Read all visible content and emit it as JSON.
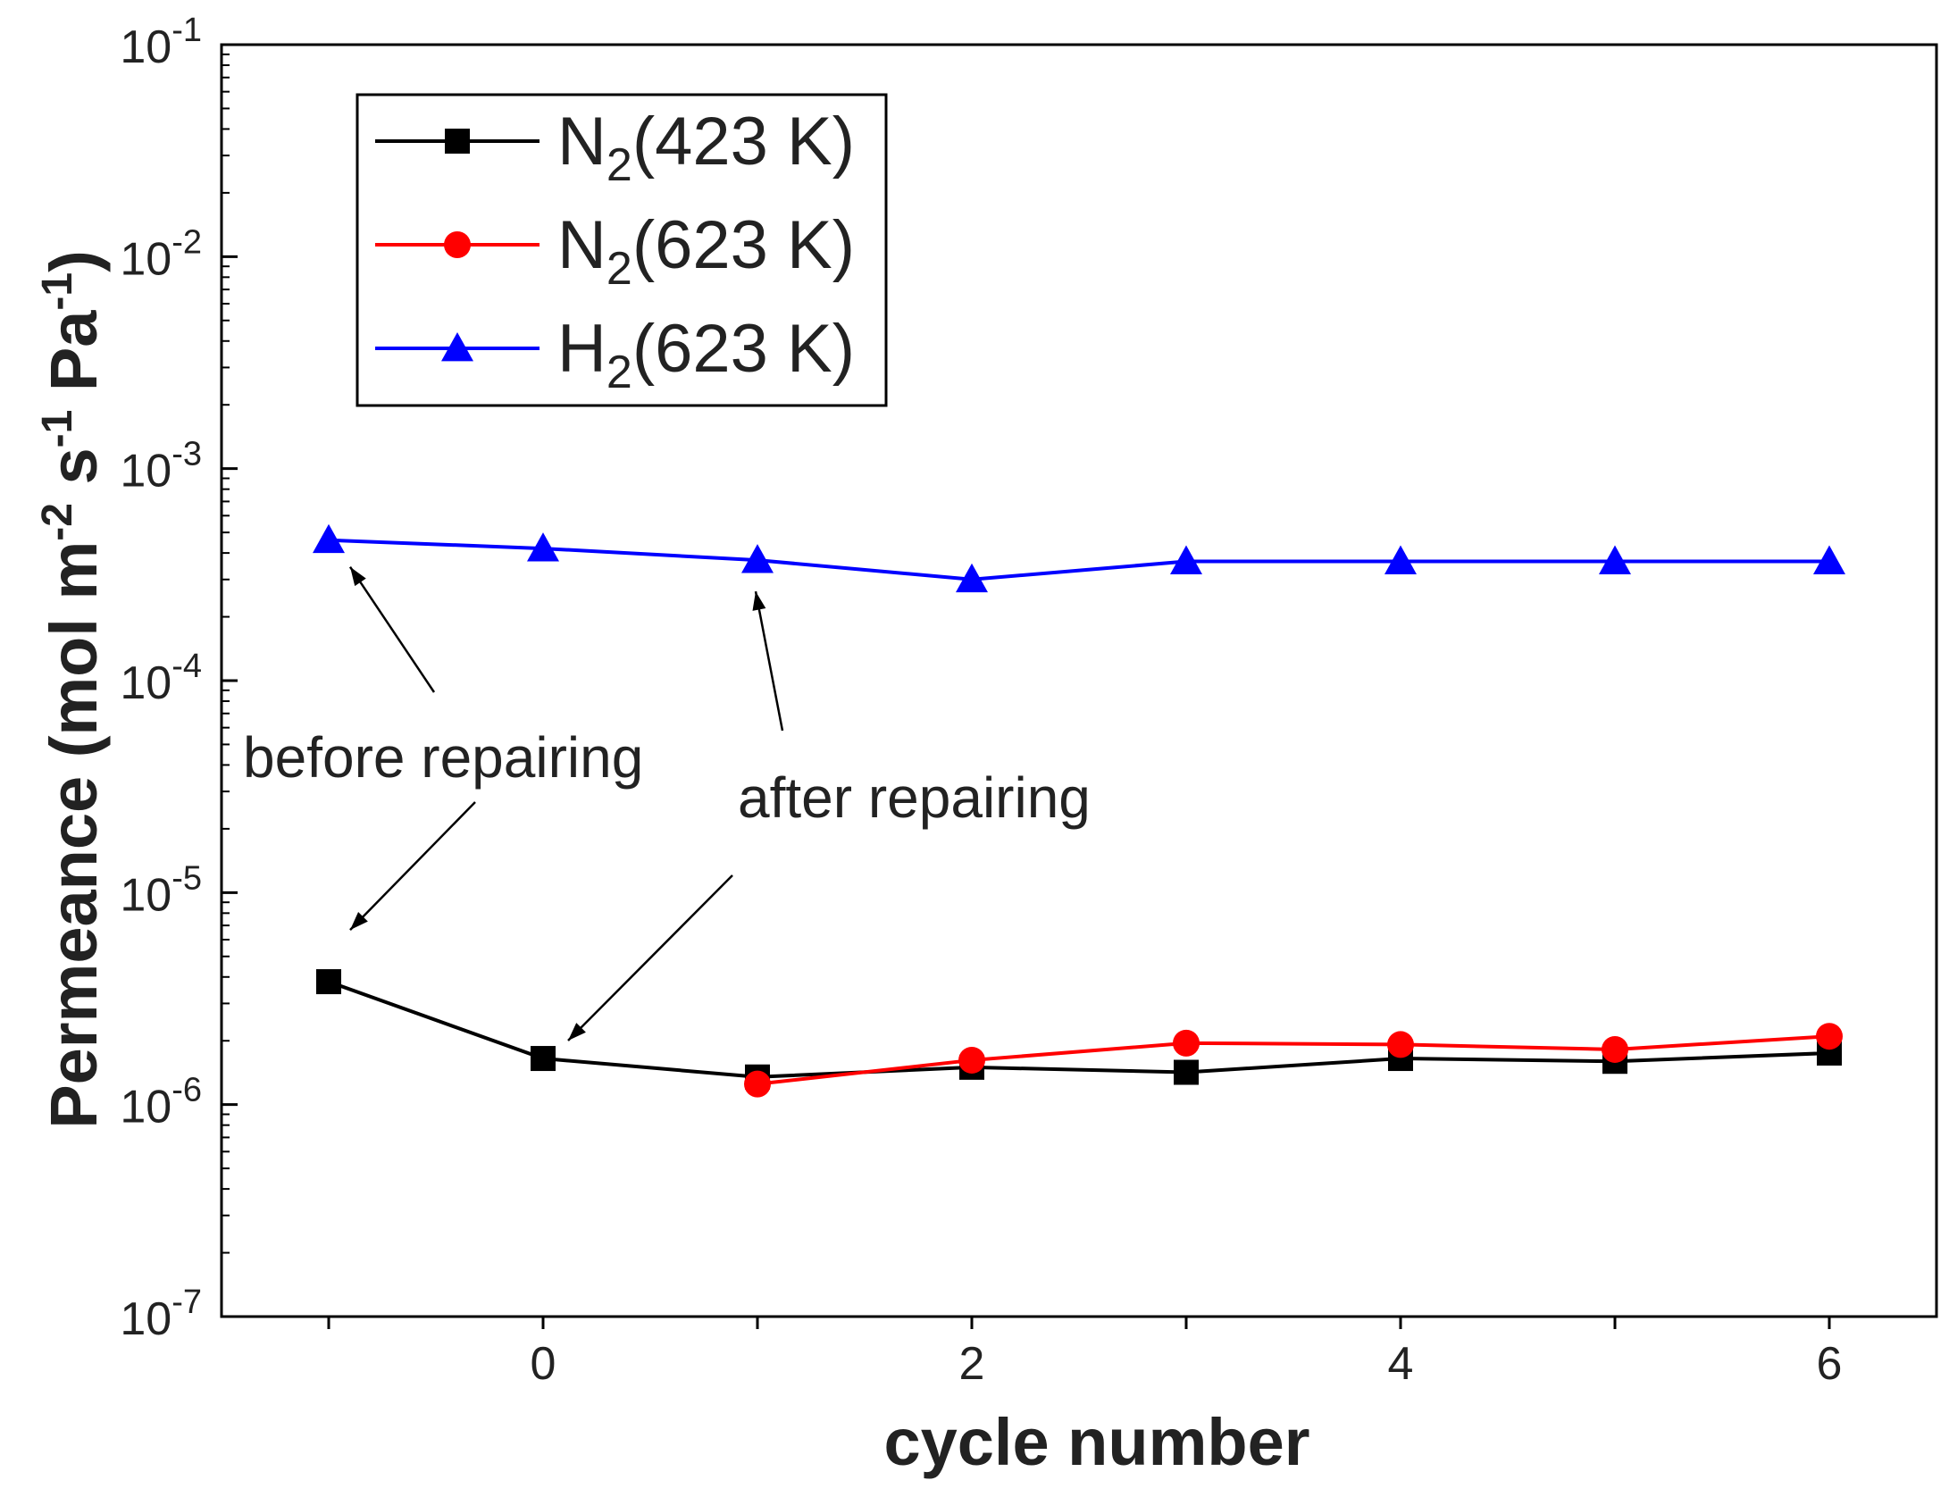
{
  "chart_data": {
    "type": "line",
    "title": "",
    "xlabel": "cycle number",
    "ylabel": "Permeance (mol m-2 s-1 Pa-1)",
    "ylabel_parts": {
      "prefix": "Permeance (mol m",
      "exp1": "-2",
      "mid1": " s",
      "exp2": "-1",
      "mid2": " Pa",
      "exp3": "-1",
      "suffix": ")"
    },
    "xlim": [
      -1.5,
      6.5
    ],
    "ylim": [
      1e-07,
      0.1
    ],
    "yscale": "log",
    "xticks": [
      0,
      2,
      4,
      6
    ],
    "yticks": [
      {
        "value": 1e-07,
        "base": "10",
        "exp": "-7"
      },
      {
        "value": 1e-06,
        "base": "10",
        "exp": "-6"
      },
      {
        "value": 1e-05,
        "base": "10",
        "exp": "-5"
      },
      {
        "value": 0.0001,
        "base": "10",
        "exp": "-4"
      },
      {
        "value": 0.001,
        "base": "10",
        "exp": "-3"
      },
      {
        "value": 0.01,
        "base": "10",
        "exp": "-2"
      },
      {
        "value": 0.1,
        "base": "10",
        "exp": "-1"
      }
    ],
    "legend_position": "top-left",
    "series": [
      {
        "name": "N2(423 K)",
        "label_base": "N",
        "label_sub": "2",
        "label_rest": "(423 K)",
        "color": "#000000",
        "marker": "square",
        "x": [
          -1,
          0,
          1,
          2,
          3,
          4,
          5,
          6
        ],
        "y": [
          3.8e-06,
          1.65e-06,
          1.35e-06,
          1.5e-06,
          1.42e-06,
          1.65e-06,
          1.6e-06,
          1.75e-06
        ]
      },
      {
        "name": "N2(623 K)",
        "label_base": "N",
        "label_sub": "2",
        "label_rest": "(623 K)",
        "color": "#ff0000",
        "marker": "circle",
        "x": [
          1,
          2,
          3,
          4,
          5,
          6
        ],
        "y": [
          1.25e-06,
          1.62e-06,
          1.95e-06,
          1.92e-06,
          1.82e-06,
          2.1e-06
        ]
      },
      {
        "name": "H2(623 K)",
        "label_base": "H",
        "label_sub": "2",
        "label_rest": "(623 K)",
        "color": "#0000ff",
        "marker": "triangle",
        "x": [
          -1,
          0,
          1,
          2,
          3,
          4,
          5,
          6
        ],
        "y": [
          0.00046,
          0.00042,
          0.00037,
          0.0003,
          0.000365,
          0.000365,
          0.000365,
          0.000365
        ]
      }
    ],
    "annotations": [
      {
        "text": "before repairing",
        "points_to": [
          {
            "x": -1,
            "series": "H2(623 K)"
          },
          {
            "x": -1,
            "series": "N2(423 K)"
          }
        ]
      },
      {
        "text": "after repairing",
        "points_to": [
          {
            "x": 1,
            "series": "H2(623 K)"
          },
          {
            "x": 0,
            "series": "N2(423 K)"
          }
        ]
      }
    ]
  }
}
